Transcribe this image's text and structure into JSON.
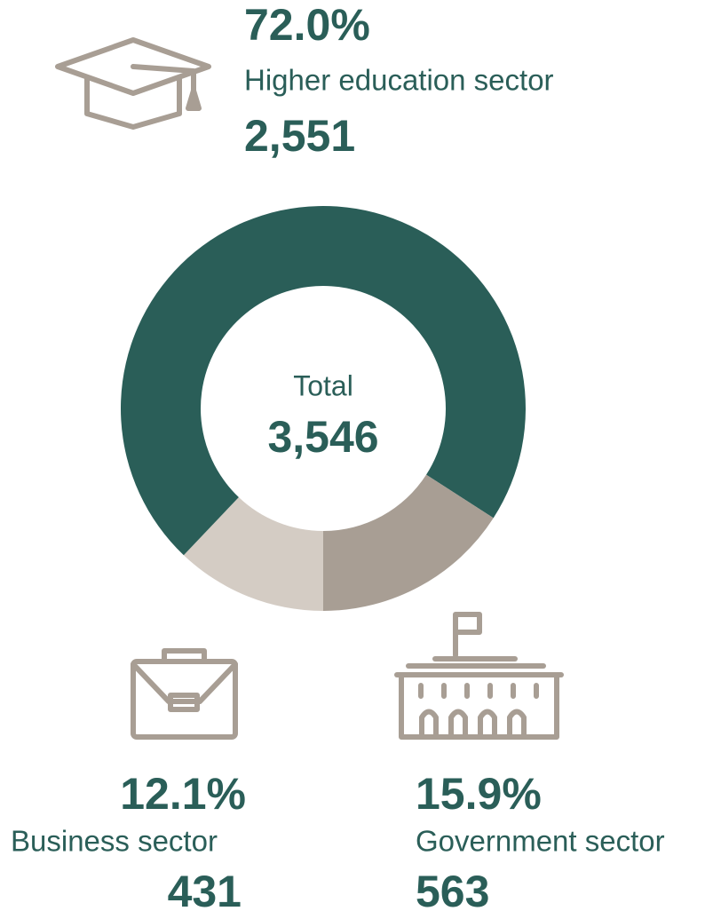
{
  "chart_data": {
    "type": "donut",
    "categories": [
      "Business sector",
      "Higher education sector",
      "Government sector"
    ],
    "values": [
      12.1,
      72.0,
      15.9
    ],
    "value_labels": [
      "12.1%",
      "72.0%",
      "15.9%"
    ],
    "counts": [
      431,
      2551,
      563
    ],
    "count_labels": [
      "431",
      "2,551",
      "563"
    ],
    "colors": [
      "#d4ccc4",
      "#2a5e58",
      "#a89e94"
    ],
    "total": {
      "label": "Total",
      "value": 3546,
      "value_label": "3,546"
    }
  }
}
